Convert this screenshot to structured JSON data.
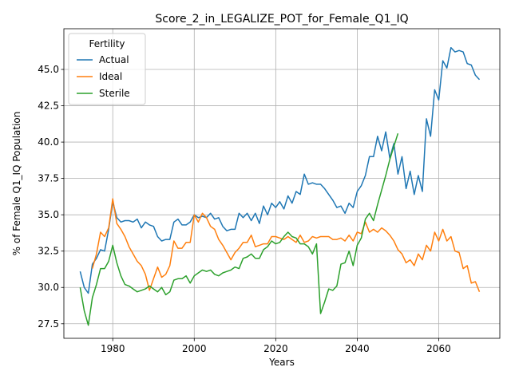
{
  "chart_data": {
    "type": "line",
    "title": "Score_2_in_LEGALIZE_POT_for_Female_Q1_IQ",
    "xlabel": "Years",
    "ylabel": "% of Female Q1_IQ Population",
    "xlim": [
      1968,
      2075
    ],
    "ylim": [
      26.5,
      47.8
    ],
    "xticks": [
      1980,
      2000,
      2020,
      2040,
      2060
    ],
    "xtick_labels": [
      "1980",
      "2000",
      "2020",
      "2040",
      "2060"
    ],
    "yticks": [
      27.5,
      30.0,
      32.5,
      35.0,
      37.5,
      40.0,
      42.5,
      45.0
    ],
    "ytick_labels": [
      "27.5",
      "30.0",
      "32.5",
      "35.0",
      "37.5",
      "40.0",
      "42.5",
      "45.0"
    ],
    "grid": true,
    "legend": {
      "title": "Fertility",
      "placement": "top-left"
    },
    "series": [
      {
        "name": "Actual",
        "color": "#1f77b4",
        "x": [
          1972,
          1973,
          1974,
          1975,
          1976,
          1977,
          1978,
          1979,
          1980,
          1981,
          1982,
          1983,
          1984,
          1985,
          1986,
          1987,
          1988,
          1989,
          1990,
          1991,
          1992,
          1993,
          1994,
          1995,
          1996,
          1997,
          1998,
          1999,
          2000,
          2001,
          2002,
          2003,
          2004,
          2005,
          2006,
          2007,
          2008,
          2009,
          2010,
          2011,
          2012,
          2013,
          2014,
          2015,
          2016,
          2017,
          2018,
          2019,
          2020,
          2021,
          2022,
          2023,
          2024,
          2025,
          2026,
          2027,
          2028,
          2029,
          2030,
          2031,
          2032,
          2033,
          2034,
          2035,
          2036,
          2037,
          2038,
          2039,
          2040,
          2041,
          2042,
          2043,
          2044,
          2045,
          2046,
          2047,
          2048,
          2049,
          2050,
          2051,
          2052,
          2053,
          2054,
          2055,
          2056,
          2057,
          2058,
          2059,
          2060,
          2061,
          2062,
          2063,
          2064,
          2065,
          2066,
          2067,
          2068,
          2069,
          2070
        ],
        "values": [
          31.1,
          30.0,
          29.6,
          31.6,
          32.0,
          32.6,
          32.5,
          34.0,
          35.9,
          34.8,
          34.5,
          34.6,
          34.6,
          34.5,
          34.7,
          34.1,
          34.5,
          34.3,
          34.2,
          33.5,
          33.2,
          33.3,
          33.3,
          34.5,
          34.7,
          34.3,
          34.3,
          34.5,
          35.0,
          34.8,
          34.9,
          34.8,
          35.1,
          34.7,
          34.8,
          34.2,
          33.9,
          34.0,
          34.0,
          35.1,
          34.8,
          35.1,
          34.6,
          35.1,
          34.4,
          35.6,
          35.0,
          35.8,
          35.5,
          35.9,
          35.4,
          36.3,
          35.8,
          36.6,
          36.4,
          37.8,
          37.1,
          37.2,
          37.1,
          37.1,
          36.8,
          36.4,
          36.0,
          35.5,
          35.6,
          35.1,
          35.8,
          35.5,
          36.6,
          37.0,
          37.7,
          39.0,
          39.0,
          40.4,
          39.4,
          40.7,
          38.9,
          39.9,
          37.8,
          39.0,
          36.8,
          38.0,
          36.4,
          37.7,
          36.6,
          41.6,
          40.4,
          43.6,
          42.9,
          45.6,
          45.1,
          46.5,
          46.2,
          46.3,
          46.2,
          45.4,
          45.3,
          44.6,
          44.3
        ]
      },
      {
        "name": "Ideal",
        "color": "#ff7f0e",
        "x": [
          1975,
          1976,
          1977,
          1978,
          1979,
          1980,
          1981,
          1982,
          1983,
          1984,
          1985,
          1986,
          1987,
          1988,
          1989,
          1990,
          1991,
          1992,
          1993,
          1994,
          1995,
          1996,
          1997,
          1998,
          1999,
          2000,
          2001,
          2002,
          2003,
          2004,
          2005,
          2006,
          2007,
          2008,
          2009,
          2010,
          2011,
          2012,
          2013,
          2014,
          2015,
          2016,
          2017,
          2018,
          2019,
          2020,
          2021,
          2022,
          2023,
          2024,
          2025,
          2026,
          2027,
          2028,
          2029,
          2030,
          2031,
          2032,
          2033,
          2034,
          2035,
          2036,
          2037,
          2038,
          2039,
          2040,
          2041,
          2042,
          2043,
          2044,
          2045,
          2046,
          2047,
          2048,
          2049,
          2050,
          2051,
          2052,
          2053,
          2054,
          2055,
          2056,
          2057,
          2058,
          2059,
          2060,
          2061,
          2062,
          2063,
          2064,
          2065,
          2066,
          2067,
          2068,
          2069,
          2070
        ],
        "values": [
          31.3,
          32.3,
          33.8,
          33.5,
          34.1,
          36.1,
          34.4,
          34.0,
          33.5,
          32.8,
          32.3,
          31.8,
          31.5,
          30.9,
          29.8,
          30.6,
          31.4,
          30.7,
          30.9,
          31.5,
          33.2,
          32.7,
          32.7,
          33.1,
          33.1,
          35.0,
          34.5,
          35.1,
          34.8,
          34.2,
          34.0,
          33.3,
          32.9,
          32.4,
          31.9,
          32.4,
          32.7,
          33.1,
          33.1,
          33.6,
          32.8,
          32.9,
          33.0,
          33.0,
          33.5,
          33.5,
          33.4,
          33.3,
          33.5,
          33.3,
          33.1,
          33.6,
          33.1,
          33.2,
          33.5,
          33.4,
          33.5,
          33.5,
          33.5,
          33.3,
          33.3,
          33.4,
          33.2,
          33.6,
          33.2,
          33.8,
          33.7,
          34.5,
          33.8,
          34.0,
          33.8,
          34.1,
          33.9,
          33.6,
          33.2,
          32.6,
          32.3,
          31.7,
          31.9,
          31.5,
          32.3,
          31.9,
          32.9,
          32.5,
          33.8,
          33.2,
          34.0,
          33.2,
          33.5,
          32.5,
          32.4,
          31.3,
          31.5,
          30.3,
          30.4,
          29.7
        ]
      },
      {
        "name": "Sterile",
        "color": "#2ca02c",
        "x": [
          1972,
          1973,
          1974,
          1975,
          1976,
          1977,
          1978,
          1979,
          1980,
          1981,
          1982,
          1983,
          1984,
          1985,
          1986,
          1987,
          1988,
          1989,
          1990,
          1991,
          1992,
          1993,
          1994,
          1995,
          1996,
          1997,
          1998,
          1999,
          2000,
          2001,
          2002,
          2003,
          2004,
          2005,
          2006,
          2007,
          2008,
          2009,
          2010,
          2011,
          2012,
          2013,
          2014,
          2015,
          2016,
          2017,
          2018,
          2019,
          2020,
          2021,
          2022,
          2023,
          2024,
          2025,
          2026,
          2027,
          2028,
          2029,
          2030,
          2031,
          2032,
          2033,
          2034,
          2035,
          2036,
          2037,
          2038,
          2039,
          2040,
          2041,
          2042,
          2043,
          2044,
          2045,
          2046,
          2047,
          2048,
          2049,
          2050
        ],
        "values": [
          30.0,
          28.4,
          27.4,
          29.3,
          30.2,
          31.3,
          31.3,
          31.8,
          32.9,
          31.7,
          30.8,
          30.2,
          30.1,
          29.9,
          29.7,
          29.8,
          29.9,
          30.1,
          29.9,
          29.7,
          30.0,
          29.5,
          29.7,
          30.5,
          30.6,
          30.6,
          30.8,
          30.3,
          30.8,
          31.0,
          31.2,
          31.1,
          31.2,
          30.9,
          30.8,
          31.0,
          31.1,
          31.2,
          31.4,
          31.3,
          32.0,
          32.1,
          32.3,
          32.0,
          32.0,
          32.6,
          32.8,
          33.2,
          33.0,
          33.1,
          33.5,
          33.8,
          33.5,
          33.4,
          33.0,
          33.0,
          32.8,
          32.3,
          33.0,
          28.2,
          29.0,
          29.9,
          29.8,
          30.1,
          31.6,
          31.7,
          32.5,
          31.5,
          32.9,
          33.4,
          34.7,
          35.1,
          34.6,
          35.7,
          36.7,
          37.7,
          38.8,
          39.7,
          40.6
        ]
      }
    ]
  }
}
